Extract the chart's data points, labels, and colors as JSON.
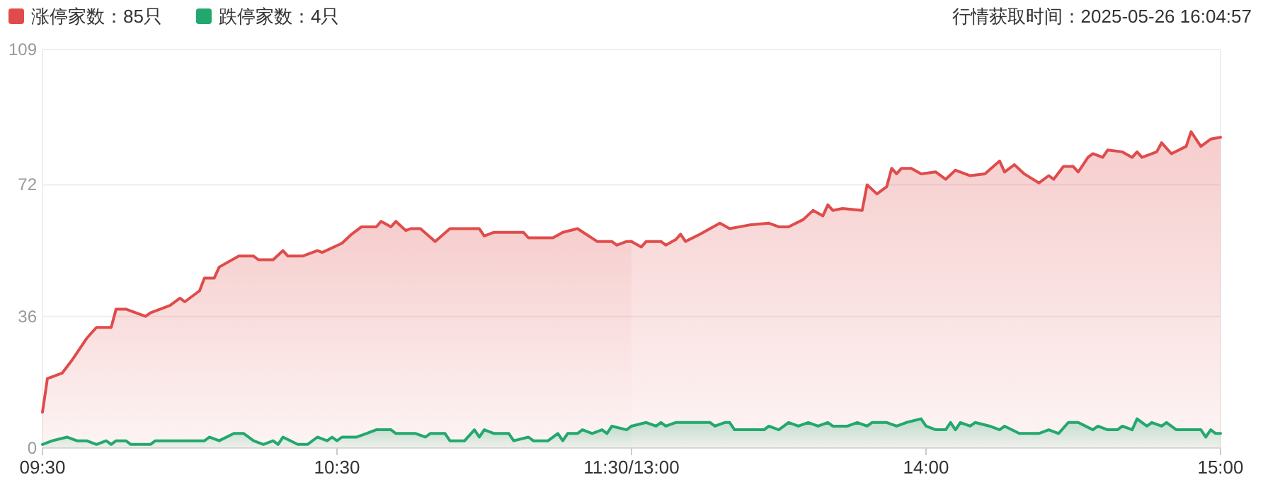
{
  "chart_data": [
    {
      "type": "area",
      "xlim": [
        "2025-05-26T09:30",
        "2025-05-26T11:30"
      ],
      "xticks": [
        {
          "value": "2025-05-26T09:30",
          "label": "09:30"
        },
        {
          "value": "2025-05-26T10:30",
          "label": "10:30"
        },
        {
          "value": "2025-05-26T11:30",
          "label": "11:30/13:00"
        }
      ],
      "ylim": [
        0,
        109
      ],
      "yticks": [
        0,
        36,
        72,
        109
      ],
      "grid": "y",
      "legend": "top left",
      "series": [
        {
          "name": "涨停家数：85只",
          "color": "#e04b4b",
          "x": [
            "2025-05-26T09:30",
            "2025-05-26T09:31",
            "2025-05-26T09:32",
            "2025-05-26T09:34",
            "2025-05-26T09:36",
            "2025-05-26T09:39",
            "2025-05-26T09:41",
            "2025-05-26T09:44",
            "2025-05-26T09:45",
            "2025-05-26T09:47",
            "2025-05-26T09:51",
            "2025-05-26T09:52",
            "2025-05-26T09:56",
            "2025-05-26T09:58",
            "2025-05-26T09:59",
            "2025-05-26T10:02",
            "2025-05-26T10:03",
            "2025-05-26T10:05",
            "2025-05-26T10:06",
            "2025-05-26T10:10",
            "2025-05-26T10:13",
            "2025-05-26T10:14",
            "2025-05-26T10:17",
            "2025-05-26T10:19",
            "2025-05-26T10:20",
            "2025-05-26T10:23",
            "2025-05-26T10:26",
            "2025-05-26T10:27",
            "2025-05-26T10:31",
            "2025-05-26T10:33",
            "2025-05-26T10:35",
            "2025-05-26T10:38",
            "2025-05-26T10:39",
            "2025-05-26T10:41",
            "2025-05-26T10:42",
            "2025-05-26T10:44",
            "2025-05-26T10:45",
            "2025-05-26T10:47",
            "2025-05-26T10:50",
            "2025-05-26T10:53",
            "2025-05-26T10:59",
            "2025-05-26T11:00",
            "2025-05-26T11:02",
            "2025-05-26T11:08",
            "2025-05-26T11:09",
            "2025-05-26T11:14",
            "2025-05-26T11:16",
            "2025-05-26T11:19",
            "2025-05-26T11:23",
            "2025-05-26T11:26",
            "2025-05-26T11:27",
            "2025-05-26T11:29",
            "2025-05-26T11:30"
          ],
          "values": [
            9.8,
            19,
            19.5,
            20.5,
            24,
            30,
            33,
            33,
            38,
            38,
            36,
            37,
            39,
            41,
            40,
            43,
            46.5,
            46.5,
            49.5,
            52.5,
            52.5,
            51.5,
            51.5,
            54,
            52.5,
            52.5,
            54,
            53.5,
            56,
            58.5,
            60.5,
            60.5,
            62,
            60.5,
            62,
            59.5,
            60,
            60,
            56.5,
            60,
            60,
            58,
            59,
            59,
            57.5,
            57.5,
            59,
            60,
            56.5,
            56.5,
            55.5,
            56.5,
            56.5
          ]
        },
        {
          "name": "跌停家数：4只",
          "color": "#22a86e",
          "x": [
            "2025-05-26T09:30",
            "2025-05-26T09:32",
            "2025-05-26T09:35",
            "2025-05-26T09:37",
            "2025-05-26T09:39",
            "2025-05-26T09:41",
            "2025-05-26T09:43",
            "2025-05-26T09:44",
            "2025-05-26T09:45",
            "2025-05-26T09:47",
            "2025-05-26T09:48",
            "2025-05-26T09:52",
            "2025-05-26T09:53",
            "2025-05-26T09:56",
            "2025-05-26T09:58",
            "2025-05-26T09:59",
            "2025-05-26T10:03",
            "2025-05-26T10:04",
            "2025-05-26T10:06",
            "2025-05-26T10:09",
            "2025-05-26T10:11",
            "2025-05-26T10:13",
            "2025-05-26T10:15",
            "2025-05-26T10:17",
            "2025-05-26T10:18",
            "2025-05-26T10:19",
            "2025-05-26T10:22",
            "2025-05-26T10:24",
            "2025-05-26T10:26",
            "2025-05-26T10:28",
            "2025-05-26T10:29",
            "2025-05-26T10:30",
            "2025-05-26T10:31",
            "2025-05-26T10:32",
            "2025-05-26T10:34",
            "2025-05-26T10:36",
            "2025-05-26T10:38",
            "2025-05-26T10:41",
            "2025-05-26T10:42",
            "2025-05-26T10:46",
            "2025-05-26T10:48",
            "2025-05-26T10:49",
            "2025-05-26T10:50",
            "2025-05-26T10:52",
            "2025-05-26T10:53",
            "2025-05-26T10:56",
            "2025-05-26T10:58",
            "2025-05-26T10:59",
            "2025-05-26T11:00",
            "2025-05-26T11:02",
            "2025-05-26T11:05",
            "2025-05-26T11:06",
            "2025-05-26T11:09",
            "2025-05-26T11:10",
            "2025-05-26T11:13",
            "2025-05-26T11:15",
            "2025-05-26T11:16",
            "2025-05-26T11:17",
            "2025-05-26T11:19",
            "2025-05-26T11:20",
            "2025-05-26T11:22",
            "2025-05-26T11:24",
            "2025-05-26T11:25",
            "2025-05-26T11:26",
            "2025-05-26T11:29",
            "2025-05-26T11:30"
          ],
          "values": [
            1,
            2,
            3,
            2,
            2,
            1,
            2,
            1,
            2,
            2,
            1,
            1,
            2,
            2,
            2,
            2,
            2,
            3,
            2,
            4,
            4,
            2,
            1,
            2,
            1,
            3,
            1,
            1,
            3,
            2,
            3,
            2,
            3,
            3,
            3,
            4,
            5,
            5,
            4,
            4,
            3,
            4,
            4,
            4,
            2,
            2,
            5,
            3,
            5,
            4,
            4,
            2,
            3,
            2,
            2,
            4,
            2,
            4,
            4,
            5,
            4,
            5,
            4,
            6,
            5,
            6
          ]
        }
      ]
    },
    {
      "type": "area",
      "tick_labels": "x",
      "annotations": [
        "行情获取时间：2025-05-26 16:04:57"
      ],
      "xlim": [
        "2025-05-26T13:00",
        "2025-05-26T15:00"
      ],
      "xticks": [
        {
          "value": "2025-05-26T13:00",
          "label": null
        },
        {
          "value": "2025-05-26T14:00",
          "label": "14:00"
        },
        {
          "value": "2025-05-26T15:00",
          "label": "15:00"
        }
      ],
      "ylim": [
        0,
        109
      ],
      "yticks": [
        0,
        36,
        72,
        109
      ],
      "grid": "y",
      "series": [
        {
          "color": "#e04b4b",
          "x": [
            "2025-05-26T13:00",
            "2025-05-26T13:02",
            "2025-05-26T13:03",
            "2025-05-26T13:06",
            "2025-05-26T13:07",
            "2025-05-26T13:09",
            "2025-05-26T13:10",
            "2025-05-26T13:11",
            "2025-05-26T13:14",
            "2025-05-26T13:18",
            "2025-05-26T13:20",
            "2025-05-26T13:24",
            "2025-05-26T13:28",
            "2025-05-26T13:30",
            "2025-05-26T13:32",
            "2025-05-26T13:35",
            "2025-05-26T13:37",
            "2025-05-26T13:39",
            "2025-05-26T13:40",
            "2025-05-26T13:41",
            "2025-05-26T13:43",
            "2025-05-26T13:47",
            "2025-05-26T13:48",
            "2025-05-26T13:50",
            "2025-05-26T13:52",
            "2025-05-26T13:53",
            "2025-05-26T13:54",
            "2025-05-26T13:55",
            "2025-05-26T13:57",
            "2025-05-26T13:59",
            "2025-05-26T14:02",
            "2025-05-26T14:04",
            "2025-05-26T14:06",
            "2025-05-26T14:09",
            "2025-05-26T14:12",
            "2025-05-26T14:15",
            "2025-05-26T14:16",
            "2025-05-26T14:18",
            "2025-05-26T14:20",
            "2025-05-26T14:23",
            "2025-05-26T14:25",
            "2025-05-26T14:26",
            "2025-05-26T14:28",
            "2025-05-26T14:30",
            "2025-05-26T14:31",
            "2025-05-26T14:33",
            "2025-05-26T14:34",
            "2025-05-26T14:36",
            "2025-05-26T14:37",
            "2025-05-26T14:40",
            "2025-05-26T14:42",
            "2025-05-26T14:43",
            "2025-05-26T14:44",
            "2025-05-26T14:47",
            "2025-05-26T14:48",
            "2025-05-26T14:50",
            "2025-05-26T14:53",
            "2025-05-26T14:54",
            "2025-05-26T14:56",
            "2025-05-26T14:58",
            "2025-05-26T15:00"
          ],
          "values": [
            56.5,
            55,
            56.5,
            56.5,
            55.5,
            57,
            58.5,
            56.5,
            58.5,
            61.5,
            60,
            61,
            61.5,
            60.5,
            60.5,
            62.5,
            65,
            63.5,
            66.5,
            65,
            65.5,
            65,
            72,
            69.5,
            71.5,
            76.5,
            75,
            76.5,
            76.5,
            75,
            75.5,
            73.5,
            76,
            74.5,
            75,
            78.5,
            75.5,
            77.5,
            75,
            72.5,
            74.5,
            73.5,
            77,
            77,
            75.5,
            79.5,
            80.5,
            79.5,
            81.5,
            81,
            79.5,
            81,
            79.5,
            81,
            83.5,
            80.5,
            82.5,
            86.5,
            82.5,
            84.5,
            85
          ]
        },
        {
          "color": "#22a86e",
          "x": [
            "2025-05-26T13:00",
            "2025-05-26T13:03",
            "2025-05-26T13:05",
            "2025-05-26T13:06",
            "2025-05-26T13:07",
            "2025-05-26T13:09",
            "2025-05-26T13:16",
            "2025-05-26T13:17",
            "2025-05-26T13:19",
            "2025-05-26T13:20",
            "2025-05-26T13:21",
            "2025-05-26T13:27",
            "2025-05-26T13:28",
            "2025-05-26T13:30",
            "2025-05-26T13:32",
            "2025-05-26T13:34",
            "2025-05-26T13:36",
            "2025-05-26T13:38",
            "2025-05-26T13:40",
            "2025-05-26T13:41",
            "2025-05-26T13:44",
            "2025-05-26T13:46",
            "2025-05-26T13:48",
            "2025-05-26T13:49",
            "2025-05-26T13:52",
            "2025-05-26T13:54",
            "2025-05-26T13:56",
            "2025-05-26T13:59",
            "2025-05-26T14:00",
            "2025-05-26T14:02",
            "2025-05-26T14:04",
            "2025-05-26T14:05",
            "2025-05-26T14:06",
            "2025-05-26T14:07",
            "2025-05-26T14:09",
            "2025-05-26T14:10",
            "2025-05-26T14:13",
            "2025-05-26T14:15",
            "2025-05-26T14:16",
            "2025-05-26T14:19",
            "2025-05-26T14:23",
            "2025-05-26T14:25",
            "2025-05-26T14:27",
            "2025-05-26T14:29",
            "2025-05-26T14:31",
            "2025-05-26T14:34",
            "2025-05-26T14:35",
            "2025-05-26T14:37",
            "2025-05-26T14:39",
            "2025-05-26T14:40",
            "2025-05-26T14:42",
            "2025-05-26T14:43",
            "2025-05-26T14:45",
            "2025-05-26T14:46",
            "2025-05-26T14:48",
            "2025-05-26T14:49",
            "2025-05-26T14:51",
            "2025-05-26T14:56",
            "2025-05-26T14:57",
            "2025-05-26T14:58",
            "2025-05-26T14:59",
            "2025-05-26T15:00"
          ],
          "values": [
            6,
            7,
            6,
            7,
            6,
            7,
            7,
            6,
            7,
            7,
            5,
            5,
            6,
            5,
            7,
            6,
            7,
            6,
            7,
            6,
            6,
            7,
            6,
            7,
            7,
            6,
            7,
            8,
            6,
            5,
            5,
            7,
            5,
            7,
            6,
            7,
            6,
            5,
            6,
            4,
            4,
            5,
            4,
            7,
            7,
            5,
            6,
            5,
            5,
            6,
            5,
            8,
            6,
            7,
            6,
            7,
            5,
            5,
            3,
            5,
            4,
            4
          ]
        }
      ]
    }
  ]
}
